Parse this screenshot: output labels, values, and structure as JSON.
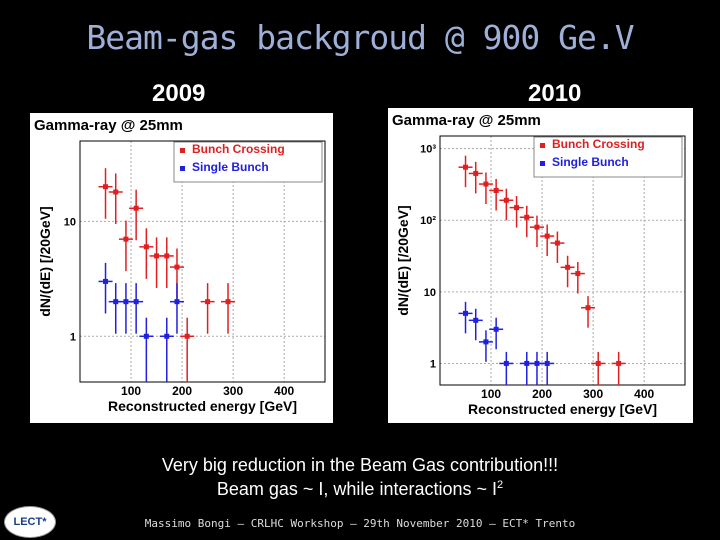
{
  "slide": {
    "title": "Beam-gas backgroud @ 900 Ge.V",
    "year_left": "2009",
    "year_right": "2010",
    "caption_line1": "Very big reduction in the Beam Gas contribution!!!",
    "caption_line2_main": "Beam gas ~ I, while interactions ~ I",
    "caption_line2_sup": "2",
    "footer": "Massimo Bongi – CRLHC Workshop – 29th November 2010 – ECT* Trento",
    "logo_text": "LECT*"
  },
  "chart_data": [
    {
      "type": "scatter",
      "title": "Gamma-ray @ 25mm",
      "xlabel": "Reconstructed energy [GeV]",
      "ylabel": "dN/(dE) [/20GeV]",
      "xlim": [
        0,
        480
      ],
      "ylim": [
        0.4,
        50
      ],
      "yscale": "log",
      "xticks": [
        100,
        200,
        300,
        400
      ],
      "xtick_labels": [
        "100",
        "200",
        "300",
        "400"
      ],
      "yticks": [
        1,
        10
      ],
      "ytick_labels": [
        "1",
        "10"
      ],
      "grid": true,
      "legend_position": "top-right",
      "series": [
        {
          "name": "Bunch Crossing",
          "color": "#e02020",
          "x": [
            50,
            70,
            90,
            110,
            130,
            150,
            170,
            190,
            210,
            250,
            290
          ],
          "y": [
            20,
            18,
            7,
            13,
            6,
            5,
            5,
            4,
            1,
            2,
            2
          ]
        },
        {
          "name": "Single Bunch",
          "color": "#2020e0",
          "x": [
            50,
            70,
            90,
            110,
            130,
            170,
            190
          ],
          "y": [
            3,
            2,
            2,
            2,
            1,
            1,
            2
          ]
        }
      ]
    },
    {
      "type": "scatter",
      "title": "Gamma-ray @ 25mm",
      "xlabel": "Reconstructed energy [GeV]",
      "ylabel": "dN/(dE) [/20GeV]",
      "xlim": [
        0,
        480
      ],
      "ylim": [
        0.5,
        1500
      ],
      "yscale": "log",
      "xticks": [
        100,
        200,
        300,
        400
      ],
      "xtick_labels": [
        "100",
        "200",
        "300",
        "400"
      ],
      "yticks": [
        1,
        10,
        100,
        1000
      ],
      "ytick_labels": [
        "1",
        "10",
        "10²",
        "10³"
      ],
      "grid": true,
      "legend_position": "top-right",
      "series": [
        {
          "name": "Bunch Crossing",
          "color": "#e02020",
          "x": [
            50,
            70,
            90,
            110,
            130,
            150,
            170,
            190,
            210,
            230,
            250,
            270,
            290,
            310,
            350
          ],
          "y": [
            550,
            450,
            320,
            260,
            190,
            150,
            110,
            80,
            60,
            48,
            22,
            18,
            6,
            1,
            1
          ]
        },
        {
          "name": "Single Bunch",
          "color": "#2020e0",
          "x": [
            50,
            70,
            90,
            110,
            130,
            170,
            190,
            210
          ],
          "y": [
            5,
            4,
            2,
            3,
            1,
            1,
            1,
            1
          ]
        }
      ]
    }
  ]
}
